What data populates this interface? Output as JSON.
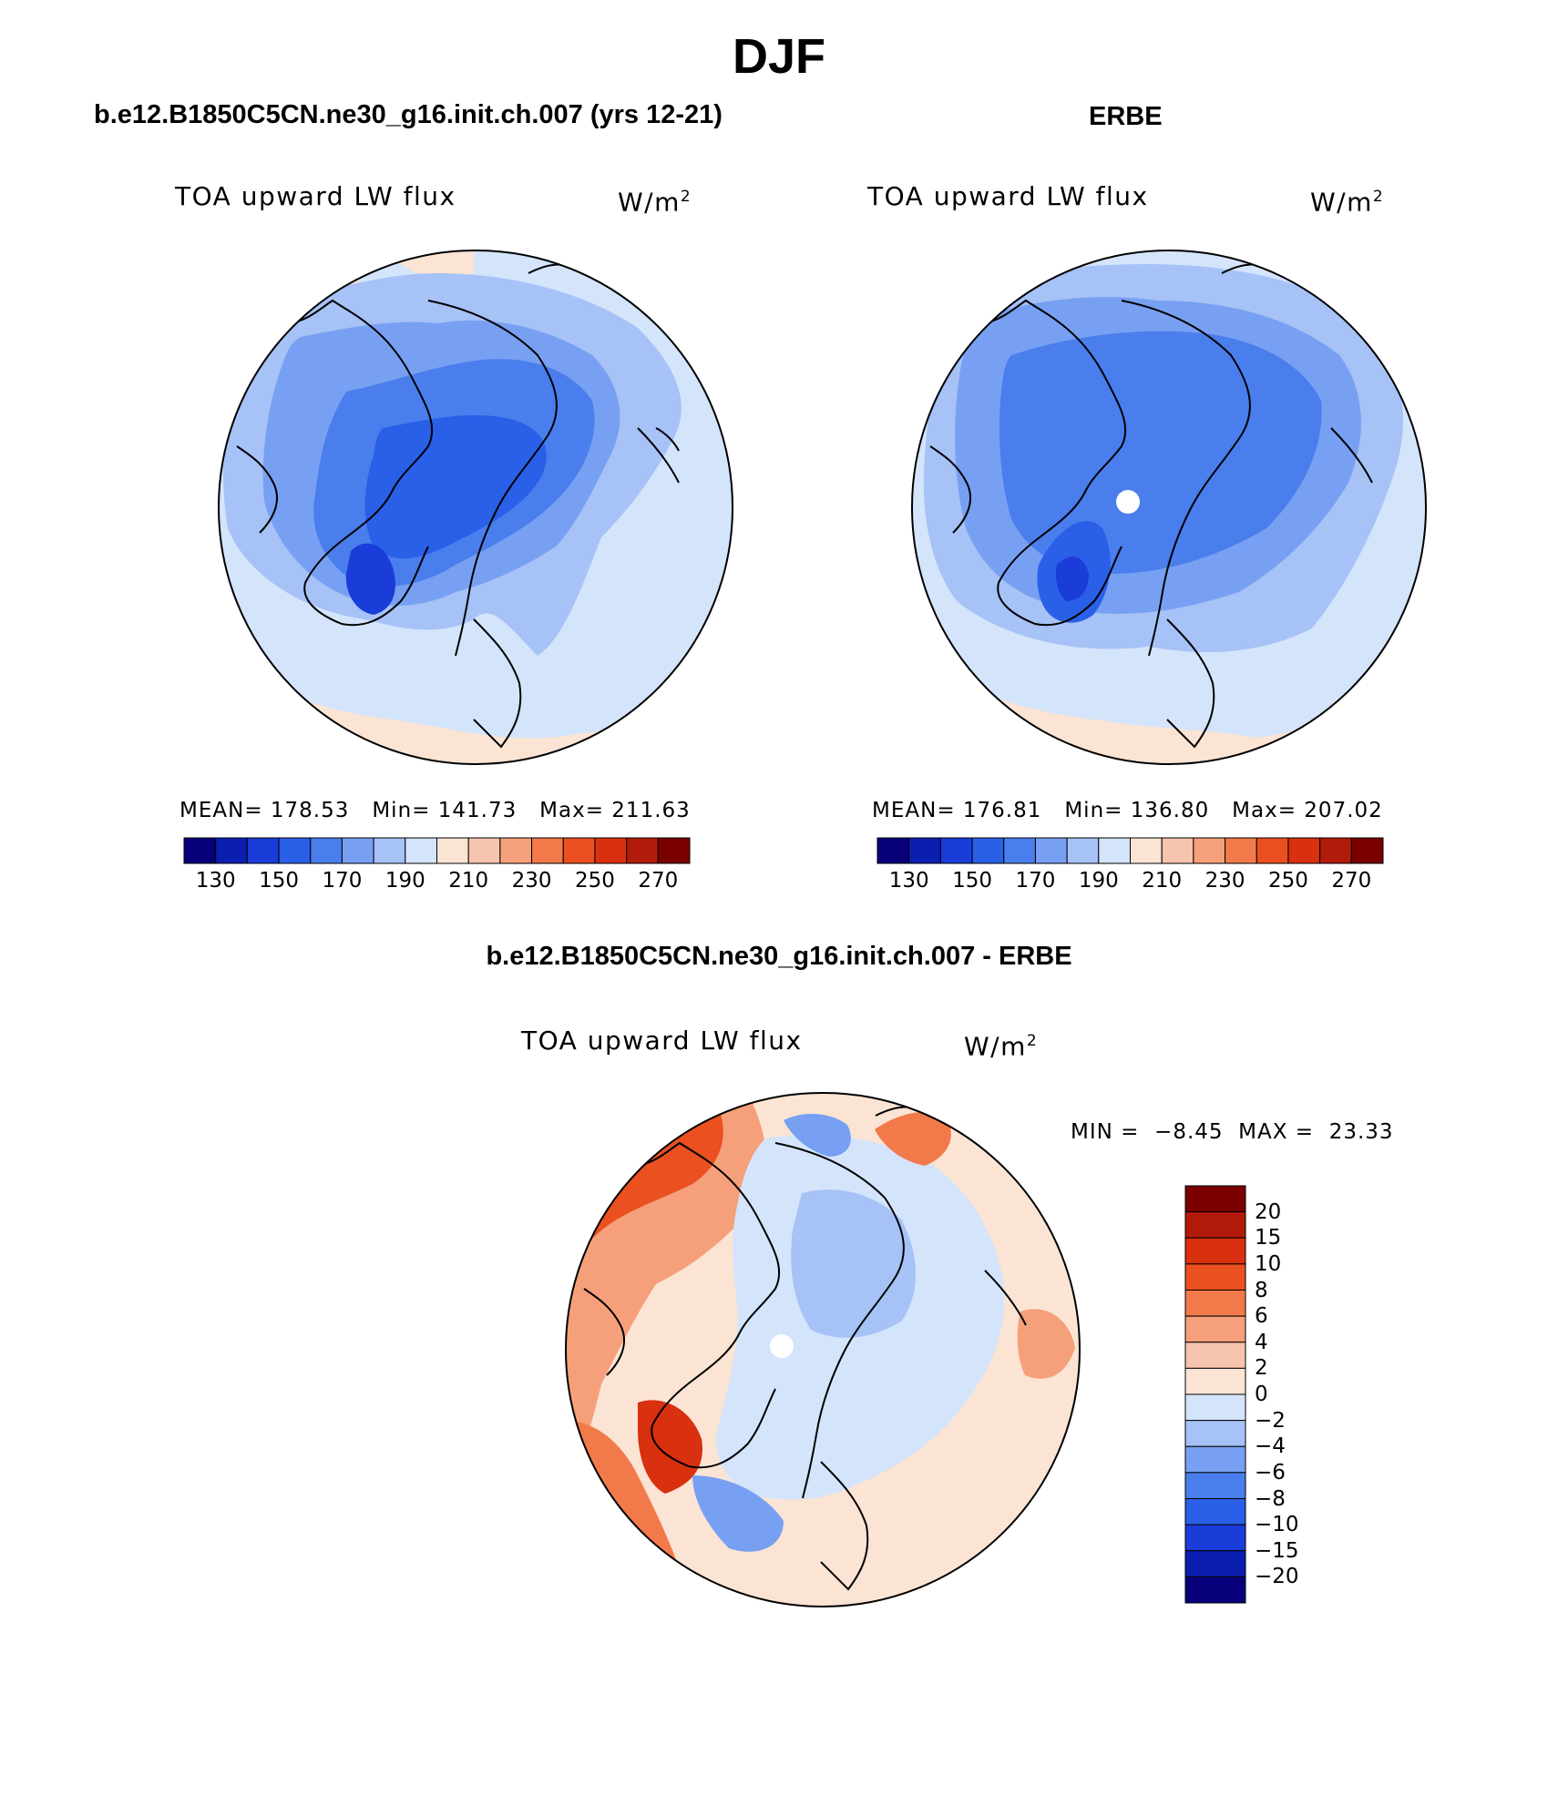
{
  "title": "DJF",
  "panels": {
    "model": {
      "title": "b.e12.B1850C5CN.ne30_g16.init.ch.007 (yrs 12-21)",
      "variable": "TOA upward LW flux",
      "units_base": "W/m",
      "units_exp": "2",
      "mean_label": "MEAN=",
      "mean": "178.53",
      "min_label": "Min=",
      "min": "141.73",
      "max_label": "Max=",
      "max": "211.63"
    },
    "obs": {
      "title": "ERBE",
      "variable": "TOA upward LW flux",
      "units_base": "W/m",
      "units_exp": "2",
      "mean_label": "MEAN=",
      "mean": "176.81",
      "min_label": "Min=",
      "min": "136.80",
      "max_label": "Max=",
      "max": "207.02"
    },
    "diff": {
      "title": "b.e12.B1850C5CN.ne30_g16.init.ch.007 - ERBE",
      "variable": "TOA upward LW flux",
      "units_base": "W/m",
      "units_exp": "2",
      "min_label": "MIN =",
      "min": "−8.45",
      "max_label": "MAX =",
      "max": "23.33"
    }
  },
  "colorbar_abs": {
    "tick_labels": [
      "130",
      "150",
      "170",
      "190",
      "210",
      "230",
      "250",
      "270"
    ],
    "colors": [
      "#08007a",
      "#0a1fb0",
      "#1a3cd8",
      "#2a5fe8",
      "#4a7eed",
      "#78a0f2",
      "#a6c2f6",
      "#d4e4fb",
      "#fbe4d4",
      "#f7c4ad",
      "#f5a07a",
      "#f27a4a",
      "#ea5020",
      "#d93010",
      "#b21a0a",
      "#7a0000"
    ]
  },
  "colorbar_diff": {
    "tick_labels": [
      "20",
      "15",
      "10",
      "8",
      "6",
      "4",
      "2",
      "0",
      "−2",
      "−4",
      "−6",
      "−8",
      "−10",
      "−15",
      "−20"
    ],
    "colors": [
      "#7a0000",
      "#b21a0a",
      "#d93010",
      "#ea5020",
      "#f27a4a",
      "#f5a07a",
      "#f7c4ad",
      "#fbe4d4",
      "#d4e4fb",
      "#a6c2f6",
      "#78a0f2",
      "#4a7eed",
      "#2a5fe8",
      "#1a3cd8",
      "#0a1fb0",
      "#08007a"
    ]
  }
}
